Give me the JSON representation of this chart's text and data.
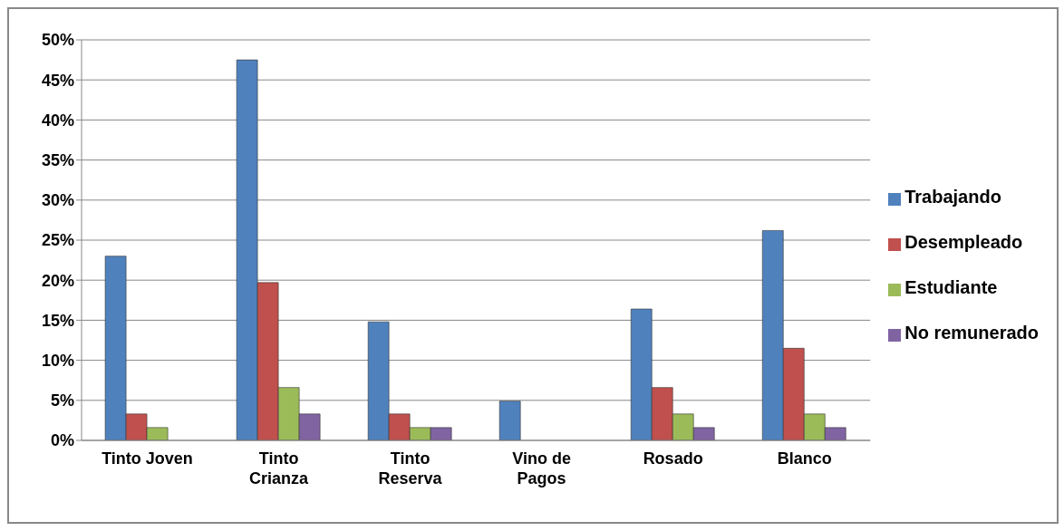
{
  "chart_data": {
    "type": "bar",
    "categories": [
      "Tinto Joven",
      "Tinto Crianza",
      "Tinto Reserva",
      "Vino de Pagos",
      "Rosado",
      "Blanco"
    ],
    "series": [
      {
        "name": "Trabajando",
        "color": "#4f81bd",
        "values": [
          23.0,
          47.5,
          14.8,
          4.9,
          16.4,
          26.2
        ]
      },
      {
        "name": "Desempleado",
        "color": "#c0504d",
        "values": [
          3.3,
          19.7,
          3.3,
          0,
          6.6,
          11.5
        ]
      },
      {
        "name": "Estudiante",
        "color": "#9bbb59",
        "values": [
          1.6,
          6.6,
          1.6,
          0,
          3.3,
          3.3
        ]
      },
      {
        "name": "No remunerado",
        "color": "#8064a2",
        "values": [
          0,
          3.3,
          1.6,
          0,
          1.6,
          1.6
        ]
      }
    ],
    "ylim": [
      0,
      50
    ],
    "yticks": [
      {
        "value": 0,
        "label": "0%"
      },
      {
        "value": 5,
        "label": "5%"
      },
      {
        "value": 10,
        "label": "10%"
      },
      {
        "value": 15,
        "label": "15%"
      },
      {
        "value": 20,
        "label": "20%"
      },
      {
        "value": 25,
        "label": "25%"
      },
      {
        "value": 30,
        "label": "30%"
      },
      {
        "value": 35,
        "label": "35%"
      },
      {
        "value": 40,
        "label": "40%"
      },
      {
        "value": 45,
        "label": "45%"
      },
      {
        "value": 50,
        "label": "50%"
      }
    ],
    "grid": "y",
    "legend": "right"
  }
}
